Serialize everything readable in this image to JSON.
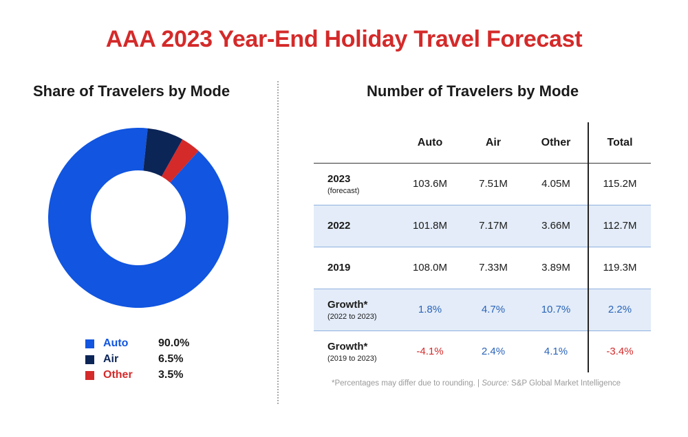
{
  "title": "AAA 2023 Year-End Holiday Travel Forecast",
  "left_subtitle": "Share of Travelers by Mode",
  "right_subtitle": "Number of Travelers by Mode",
  "colors": {
    "auto": "#1155e0",
    "air": "#0c2557",
    "other": "#d42a2a",
    "title_red": "#d42a2a",
    "row_shade": "#e3ecf8"
  },
  "chart_data": [
    {
      "type": "pie",
      "title": "Share of Travelers by Mode",
      "donut": true,
      "categories": [
        "Auto",
        "Air",
        "Other"
      ],
      "values": [
        90.0,
        6.5,
        3.5
      ],
      "value_labels": [
        "90.0%",
        "6.5%",
        "3.5%"
      ],
      "legend_position": "bottom"
    },
    {
      "type": "table",
      "title": "Number of Travelers by Mode",
      "columns": [
        "Auto",
        "Air",
        "Other",
        "Total"
      ],
      "rows": [
        {
          "label": "2023",
          "sublabel": "(forecast)",
          "values": [
            "103.6M",
            "7.51M",
            "4.05M",
            "115.2M"
          ]
        },
        {
          "label": "2022",
          "sublabel": "",
          "values": [
            "101.8M",
            "7.17M",
            "3.66M",
            "112.7M"
          ]
        },
        {
          "label": "2019",
          "sublabel": "",
          "values": [
            "108.0M",
            "7.33M",
            "3.89M",
            "119.3M"
          ]
        },
        {
          "label": "Growth*",
          "sublabel": "(2022 to 2023)",
          "values": [
            "1.8%",
            "4.7%",
            "10.7%",
            "2.2%"
          ]
        },
        {
          "label": "Growth*",
          "sublabel": "(2019 to 2023)",
          "values": [
            "-4.1%",
            "2.4%",
            "4.1%",
            "-3.4%"
          ]
        }
      ]
    }
  ],
  "footnote": {
    "text": "*Percentages may differ due to rounding. | ",
    "source_label": "Source:",
    "source": " S&P Global Market Intelligence"
  }
}
